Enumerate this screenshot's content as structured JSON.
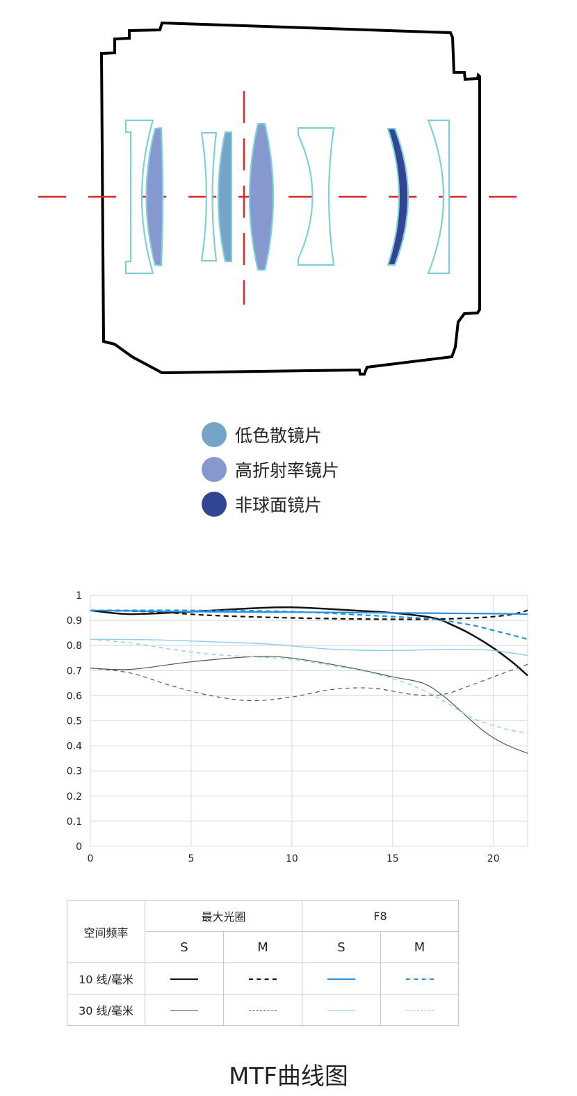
{
  "colors": {
    "housing": "#000000",
    "optical_axis": "#d8262a",
    "element_outline": "#7fcfdb",
    "low_dispersion": "#74a4c7",
    "high_index": "#8798cf",
    "aspherical": "#324593",
    "grid": "#d8d8d8",
    "black": "#111111",
    "blue": "#2a8fdc",
    "light_blue": "#8dcdf3",
    "gray": "#555555"
  },
  "legend": [
    {
      "label": "低色散镜片",
      "color": "#74a4c7",
      "icon": "circle"
    },
    {
      "label": "高折射率镜片",
      "color": "#8798cf",
      "icon": "circle"
    },
    {
      "label": "非球面镜片",
      "color": "#324593",
      "icon": "circle"
    }
  ],
  "chart_data": {
    "type": "line",
    "xlim": [
      0,
      21.7
    ],
    "ylim": [
      0,
      1
    ],
    "x_ticks": [
      "0",
      "5",
      "10",
      "15",
      "20"
    ],
    "y_ticks": [
      "0",
      "0.1",
      "0.2",
      "0.3",
      "0.4",
      "0.5",
      "0.6",
      "0.7",
      "0.8",
      "0.9",
      "1"
    ],
    "grid": true,
    "series": [
      {
        "name": "最大光圈 S 10 线/毫米",
        "color": "#111111",
        "width": 2.5,
        "dash": "",
        "x": [
          0,
          2,
          5,
          8,
          10,
          13,
          15,
          17,
          18,
          19,
          20,
          21,
          21.7
        ],
        "y": [
          0.94,
          0.925,
          0.935,
          0.948,
          0.952,
          0.94,
          0.93,
          0.91,
          0.88,
          0.84,
          0.79,
          0.73,
          0.68
        ]
      },
      {
        "name": "最大光圈 M 10 线/毫米",
        "color": "#111111",
        "width": 2.2,
        "dash": "7,5",
        "x": [
          0,
          3,
          6,
          10,
          14,
          17,
          19,
          20,
          21,
          21.7
        ],
        "y": [
          0.94,
          0.935,
          0.92,
          0.91,
          0.905,
          0.905,
          0.91,
          0.915,
          0.925,
          0.94
        ]
      },
      {
        "name": "F8 S 10 线/毫米",
        "color": "#2a8fdc",
        "width": 2.2,
        "dash": "",
        "x": [
          0,
          5,
          10,
          15,
          20,
          21.7
        ],
        "y": [
          0.94,
          0.935,
          0.933,
          0.93,
          0.927,
          0.925
        ]
      },
      {
        "name": "F8 M 10 线/毫米",
        "color": "#2a8fdc",
        "width": 2.2,
        "dash": "7,5",
        "x": [
          0,
          5,
          10,
          15,
          17,
          19,
          20,
          21,
          21.7
        ],
        "y": [
          0.94,
          0.94,
          0.935,
          0.915,
          0.905,
          0.88,
          0.86,
          0.84,
          0.825
        ]
      },
      {
        "name": "最大光圈 S 30 线/毫米",
        "color": "#555555",
        "width": 1.2,
        "dash": "",
        "x": [
          0,
          2,
          5,
          8,
          10,
          13,
          15,
          16.5,
          17.5,
          18.5,
          19.5,
          20.5,
          21.7
        ],
        "y": [
          0.71,
          0.705,
          0.735,
          0.755,
          0.75,
          0.71,
          0.675,
          0.65,
          0.6,
          0.53,
          0.46,
          0.41,
          0.37
        ]
      },
      {
        "name": "最大光圈 M 30 线/毫米",
        "color": "#555555",
        "width": 1.2,
        "dash": "6,5",
        "x": [
          0,
          2,
          4,
          6,
          8,
          10,
          12,
          14,
          16,
          17.5,
          19,
          20.5,
          21.7
        ],
        "y": [
          0.71,
          0.69,
          0.64,
          0.6,
          0.58,
          0.595,
          0.625,
          0.63,
          0.605,
          0.605,
          0.645,
          0.69,
          0.725
        ]
      },
      {
        "name": "F8 S 30 线/毫米",
        "color": "#8dcdf3",
        "width": 1.4,
        "dash": "",
        "x": [
          0,
          3,
          6,
          9,
          12,
          15,
          18,
          20,
          21.7
        ],
        "y": [
          0.825,
          0.823,
          0.815,
          0.805,
          0.785,
          0.78,
          0.785,
          0.78,
          0.76
        ]
      },
      {
        "name": "F8 M 30 线/毫米",
        "color": "#8dcdf3",
        "width": 1.4,
        "dash": "6,5",
        "x": [
          0,
          2,
          4,
          6,
          8,
          10,
          12,
          14,
          16,
          17.5,
          19,
          20.5,
          21.7
        ],
        "y": [
          0.825,
          0.81,
          0.785,
          0.765,
          0.755,
          0.745,
          0.72,
          0.69,
          0.64,
          0.58,
          0.51,
          0.47,
          0.45
        ]
      }
    ]
  },
  "table": {
    "header_freq": "空间频率",
    "header_max": "最大光圈",
    "header_f8": "F8",
    "sub": [
      "S",
      "M",
      "S",
      "M"
    ],
    "rows": [
      {
        "label": "10 线/毫米",
        "samples": [
          {
            "color": "#111111",
            "dash": "solid",
            "thickness": 2
          },
          {
            "color": "#111111",
            "dash": "dashed",
            "thickness": 2
          },
          {
            "color": "#2a8fdc",
            "dash": "solid",
            "thickness": 2
          },
          {
            "color": "#2a8fdc",
            "dash": "dashed",
            "thickness": 2
          }
        ]
      },
      {
        "label": "30 线/毫米",
        "samples": [
          {
            "color": "#555555",
            "dash": "solid",
            "thickness": 1
          },
          {
            "color": "#555555",
            "dash": "dashed",
            "thickness": 1
          },
          {
            "color": "#8dcdf3",
            "dash": "solid",
            "thickness": 1
          },
          {
            "color": "#8dcdf3",
            "dash": "dashed",
            "thickness": 1
          }
        ]
      }
    ]
  },
  "caption": "MTF曲线图"
}
